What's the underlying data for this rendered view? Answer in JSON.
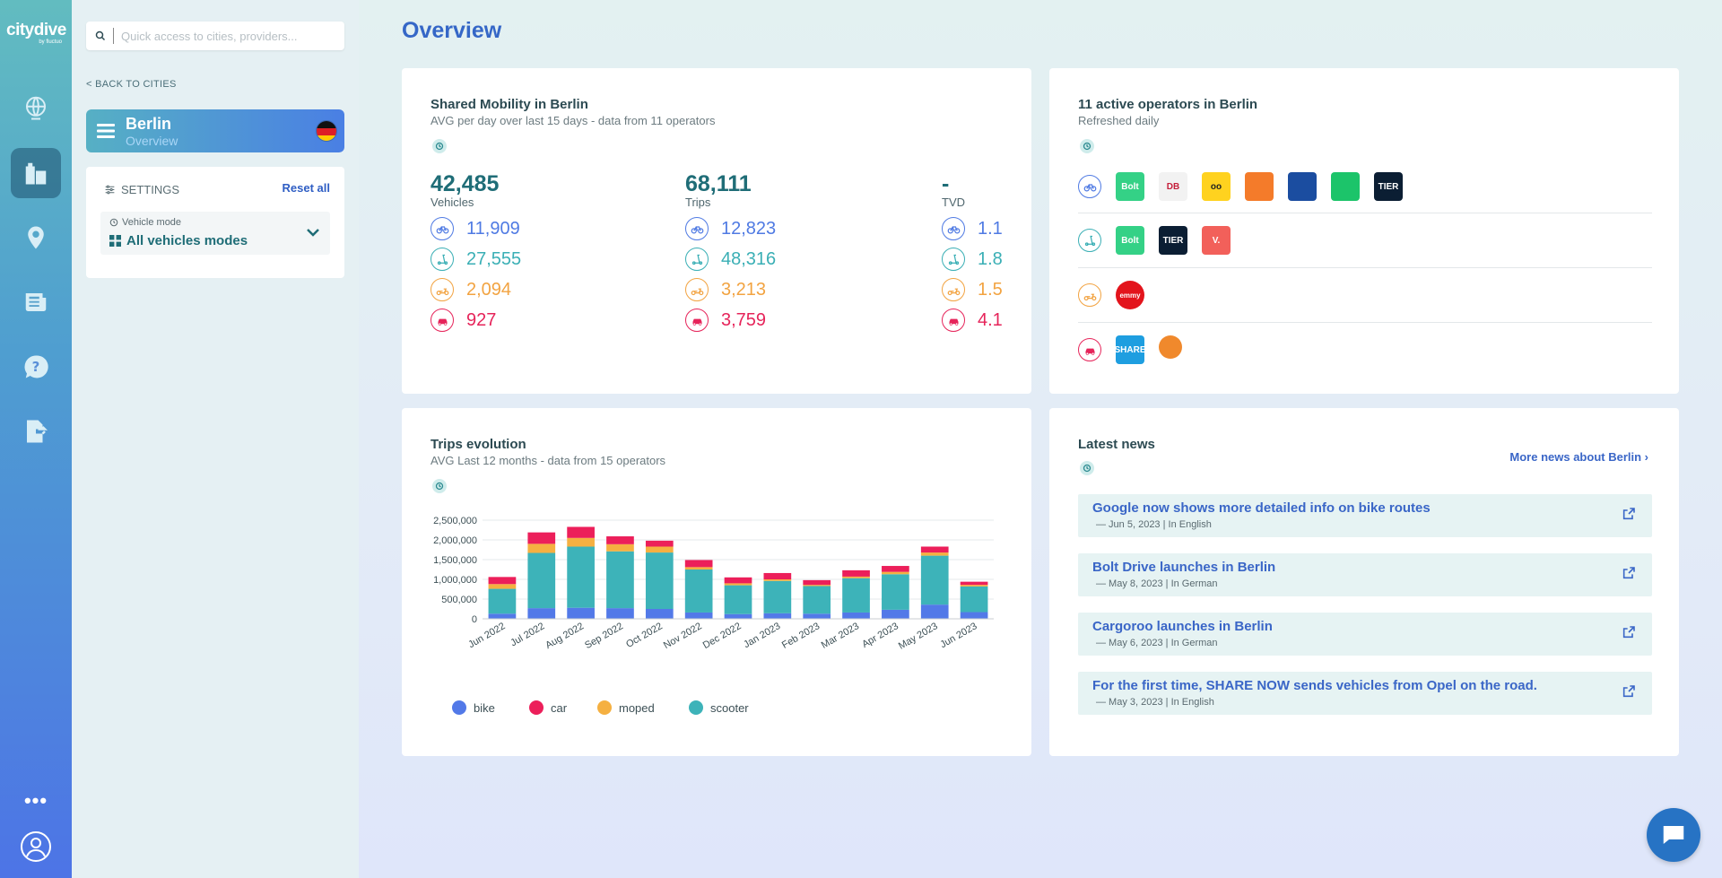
{
  "app": {
    "logo": "citydive",
    "logo_sub": "by fluctuo"
  },
  "search": {
    "placeholder": "Quick access to cities, providers..."
  },
  "nav": {
    "back_label": "BACK TO CITIES"
  },
  "city": {
    "name": "Berlin",
    "sub": "Overview"
  },
  "settings": {
    "title": "SETTINGS",
    "reset": "Reset all",
    "vehicle_mode_label": "Vehicle mode",
    "vehicle_mode_value": "All vehicles modes"
  },
  "page": {
    "title": "Overview"
  },
  "mobility": {
    "title": "Shared Mobility in Berlin",
    "subtitle": "AVG per day over last 15 days - data from 11 operators",
    "vehicles": {
      "total": "42,485",
      "label": "Vehicles",
      "bike": "11,909",
      "scooter": "27,555",
      "moped": "2,094",
      "car": "927"
    },
    "trips": {
      "total": "68,111",
      "label": "Trips",
      "bike": "12,823",
      "scooter": "48,316",
      "moped": "3,213",
      "car": "3,759"
    },
    "tvd": {
      "total": "-",
      "label": "TVD",
      "bike": "1.1",
      "scooter": "1.8",
      "moped": "1.5",
      "car": "4.1"
    }
  },
  "operators": {
    "title": "11 active operators in Berlin",
    "subtitle": "Refreshed daily",
    "bike_ops": [
      {
        "text": "Bolt",
        "bg": "#34d186"
      },
      {
        "text": "DB",
        "bg": "#f2f2f2"
      },
      {
        "text": "oo",
        "bg": "#ffd21f"
      },
      {
        "text": "",
        "bg": "#f47b2a"
      },
      {
        "text": "",
        "bg": "#1b4da0"
      },
      {
        "text": "",
        "bg": "#1cc46a"
      },
      {
        "text": "TIER",
        "bg": "#0b1e33"
      }
    ],
    "scooter_ops": [
      {
        "text": "Bolt",
        "bg": "#34d186"
      },
      {
        "text": "TIER",
        "bg": "#0b1e33"
      },
      {
        "text": "V.",
        "bg": "#f2605a"
      }
    ],
    "moped_ops": [
      {
        "text": "emmy",
        "bg": "#e3141c"
      }
    ],
    "car_ops": [
      {
        "text": "SHARE",
        "bg": "#1e9ee0"
      },
      {
        "text": "",
        "bg": "#f0892c"
      }
    ]
  },
  "trips_card": {
    "title": "Trips evolution",
    "subtitle": "AVG Last 12 months - data from 15 operators"
  },
  "chart_data": {
    "type": "bar",
    "stacked": true,
    "categories": [
      "Jun 2022",
      "Jul 2022",
      "Aug 2022",
      "Sep 2022",
      "Oct 2022",
      "Nov 2022",
      "Dec 2022",
      "Jan 2023",
      "Feb 2023",
      "Mar 2023",
      "Apr 2023",
      "May 2023",
      "Jun 2023"
    ],
    "series": [
      {
        "name": "bike",
        "color": "#5279e8",
        "values": [
          130000,
          270000,
          280000,
          270000,
          250000,
          160000,
          120000,
          140000,
          130000,
          160000,
          230000,
          360000,
          170000
        ]
      },
      {
        "name": "scooter",
        "color": "#3db3b9",
        "values": [
          630000,
          1400000,
          1550000,
          1440000,
          1430000,
          1090000,
          730000,
          820000,
          700000,
          870000,
          900000,
          1240000,
          650000
        ]
      },
      {
        "name": "moped",
        "color": "#f5b041",
        "values": [
          120000,
          230000,
          220000,
          180000,
          150000,
          60000,
          50000,
          40000,
          30000,
          40000,
          60000,
          80000,
          40000
        ]
      },
      {
        "name": "car",
        "color": "#ec1f5a",
        "values": [
          180000,
          290000,
          280000,
          200000,
          150000,
          180000,
          150000,
          160000,
          120000,
          160000,
          150000,
          150000,
          80000
        ]
      }
    ],
    "ylim": [
      0,
      2500000
    ],
    "yticks": [
      "0",
      "500,000",
      "1,000,000",
      "1,500,000",
      "2,000,000",
      "2,500,000"
    ],
    "legend": [
      "bike",
      "car",
      "moped",
      "scooter"
    ]
  },
  "news": {
    "title": "Latest news",
    "more": "More news about Berlin",
    "items": [
      {
        "title": "Google now shows more detailed info on bike routes",
        "meta": "— Jun 5, 2023 | In English"
      },
      {
        "title": "Bolt Drive launches in Berlin",
        "meta": "— May 8, 2023 | In German"
      },
      {
        "title": "Cargoroo launches in Berlin",
        "meta": "— May 6, 2023 | In German"
      },
      {
        "title": "For the first time, SHARE NOW sends vehicles from Opel on the road.",
        "meta": "— May 3, 2023 | In English"
      }
    ]
  }
}
